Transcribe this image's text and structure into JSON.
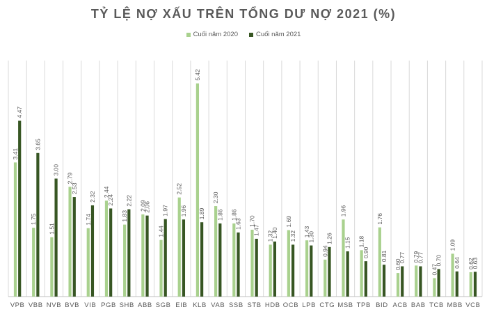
{
  "chart_data": {
    "type": "bar",
    "title": "TỶ LỆ NỢ XẤU TRÊN TỔNG DƯ NỢ 2021 (%)",
    "xlabel": "",
    "ylabel": "",
    "ylim": [
      0,
      6
    ],
    "grid": "vertical separators",
    "legend_position": "top-center",
    "categories": [
      "VPB",
      "VBB",
      "NVB",
      "BVB",
      "VIB",
      "PGB",
      "SHB",
      "ABB",
      "SGB",
      "EIB",
      "KLB",
      "VAB",
      "SSB",
      "STB",
      "HDB",
      "OCB",
      "LPB",
      "CTG",
      "MSB",
      "TPB",
      "BID",
      "ACB",
      "BAB",
      "TCB",
      "MBB",
      "VCB"
    ],
    "series": [
      {
        "name": "Cuối năm 2020",
        "color": "#a9d18e",
        "values": [
          3.41,
          1.75,
          1.51,
          2.79,
          1.74,
          2.44,
          1.83,
          2.09,
          1.44,
          2.52,
          5.42,
          2.3,
          1.86,
          1.7,
          1.32,
          1.69,
          1.43,
          0.94,
          1.96,
          1.18,
          1.76,
          0.6,
          0.79,
          0.47,
          1.09,
          0.62
        ],
        "labels": [
          "3.41",
          "1.75",
          "1.51",
          "2.79",
          "1.74",
          "2.44",
          "1.83",
          "2.09",
          "1.44",
          "2.52",
          "5.42",
          "2.30",
          "1.86",
          "1.70",
          "1.32",
          "1.69",
          "1.43",
          "0.94",
          "1.96",
          "1.18",
          "1.76",
          "0.60",
          "0.79",
          "0.47",
          "1.09",
          "0.62"
        ]
      },
      {
        "name": "Cuối năm 2021",
        "color": "#375623",
        "values": [
          4.47,
          3.65,
          3.0,
          2.53,
          2.32,
          2.24,
          2.22,
          2.06,
          1.97,
          1.96,
          1.89,
          1.86,
          1.63,
          1.47,
          1.4,
          1.32,
          1.3,
          1.26,
          1.15,
          0.9,
          0.81,
          0.77,
          0.77,
          0.7,
          0.64,
          0.63
        ],
        "labels": [
          "4.47",
          "3.65",
          "3.00",
          "2.53",
          "2.32",
          "2.24",
          "2.22",
          "2.06",
          "1.97",
          "1.96",
          "1.89",
          "1.86",
          "1.63",
          "1.47",
          "1.40",
          "1.32",
          "1.30",
          "1.26",
          "1.15",
          "0.90",
          "0.81",
          "0.77",
          "0.77",
          "0.70",
          "0.64",
          "0.63"
        ]
      }
    ]
  }
}
